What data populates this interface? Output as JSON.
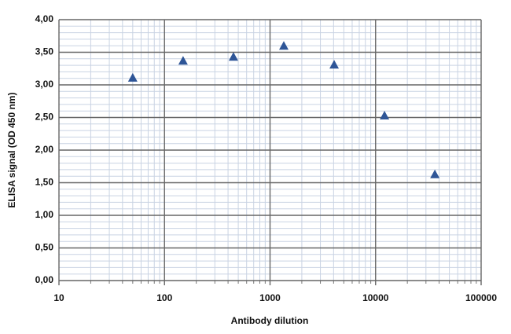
{
  "chart_data": {
    "type": "line",
    "x_label": "Antibody dilution",
    "y_label": "ELISA signal (OD 450 nm)",
    "x": [
      50,
      150,
      450,
      1350,
      4050,
      12150,
      36450
    ],
    "series": [
      {
        "values": [
          3.11,
          3.37,
          3.43,
          3.6,
          3.31,
          2.53,
          1.63
        ],
        "color": "#2e5597",
        "line_color": "#8ea9d8"
      }
    ],
    "xscale": "log",
    "xlim": [
      10,
      100000
    ],
    "xticks": [
      10,
      100,
      1000,
      10000,
      100000
    ],
    "ylim": [
      0,
      4
    ],
    "yticks": [
      {
        "value": 0,
        "label": "0,00"
      },
      {
        "value": 0.5,
        "label": "0,50"
      },
      {
        "value": 1,
        "label": "1,00"
      },
      {
        "value": 1.5,
        "label": "1,50"
      },
      {
        "value": 2,
        "label": "2,00"
      },
      {
        "value": 2.5,
        "label": "2,50"
      },
      {
        "value": 3,
        "label": "3,00"
      },
      {
        "value": 3.5,
        "label": "3,50"
      },
      {
        "value": 4,
        "label": "4,00"
      }
    ],
    "grid": true,
    "minor_grid": true
  }
}
